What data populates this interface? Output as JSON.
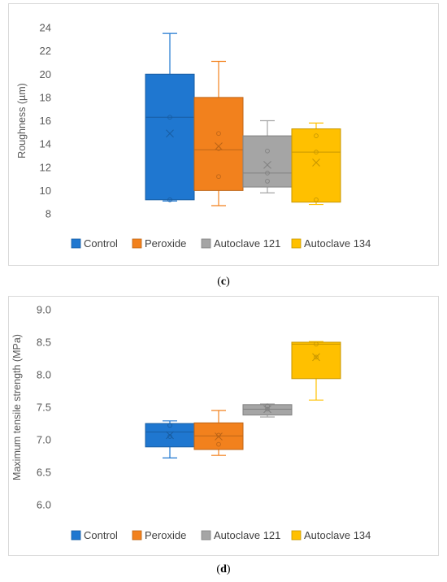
{
  "legend_colors": {
    "Control": "#1f77d0",
    "Peroxide": "#f2811d",
    "Autoclave 121": "#a5a5a5",
    "Autoclave 134": "#ffc000"
  },
  "chart_data": [
    {
      "type": "box",
      "panel_label": "c",
      "ylabel": "Roughness (µm)",
      "ylim": [
        8,
        24
      ],
      "yticks": [
        8,
        10,
        12,
        14,
        16,
        18,
        20,
        22,
        24
      ],
      "grid": false,
      "legend_position": "bottom",
      "series": [
        {
          "name": "Control",
          "color": "#1f77d0",
          "min": 9.1,
          "q1": 9.2,
          "median": 16.3,
          "q3": 20.0,
          "max": 23.5,
          "mean": 14.9,
          "points": [
            16.3,
            9.2
          ]
        },
        {
          "name": "Peroxide",
          "color": "#f2811d",
          "min": 8.7,
          "q1": 10.0,
          "median": 13.5,
          "q3": 18.0,
          "max": 21.1,
          "mean": 13.8,
          "points": [
            14.9,
            13.6,
            11.2
          ]
        },
        {
          "name": "Autoclave 121",
          "color": "#a5a5a5",
          "min": 9.8,
          "q1": 10.3,
          "median": 11.5,
          "q3": 14.7,
          "max": 16.0,
          "mean": 12.2,
          "points": [
            13.4,
            11.5,
            10.8
          ]
        },
        {
          "name": "Autoclave 134",
          "color": "#ffc000",
          "min": 8.8,
          "q1": 9.0,
          "median": 13.3,
          "q3": 15.3,
          "max": 15.8,
          "mean": 12.4,
          "points": [
            14.7,
            13.3,
            9.2
          ]
        }
      ]
    },
    {
      "type": "box",
      "panel_label": "d",
      "ylabel": "Maximum tensile strength (MPa)",
      "ylim": [
        6.0,
        9.0
      ],
      "yticks": [
        "6.0",
        "6.5",
        "7.0",
        "7.5",
        "8.0",
        "8.5",
        "9.0"
      ],
      "grid": false,
      "legend_position": "bottom",
      "series": [
        {
          "name": "Control",
          "color": "#1f77d0",
          "min": 6.72,
          "q1": 6.89,
          "median": 7.12,
          "q3": 7.25,
          "max": 7.29,
          "mean": 7.07,
          "points": [
            7.22,
            7.05
          ]
        },
        {
          "name": "Peroxide",
          "color": "#f2811d",
          "min": 6.76,
          "q1": 6.85,
          "median": 7.06,
          "q3": 7.26,
          "max": 7.45,
          "mean": 7.05,
          "points": [
            7.07,
            6.93
          ]
        },
        {
          "name": "Autoclave 121",
          "color": "#a5a5a5",
          "min": 7.35,
          "q1": 7.38,
          "median": 7.47,
          "q3": 7.54,
          "max": 7.55,
          "mean": 7.47,
          "points": [
            7.52,
            7.47
          ]
        },
        {
          "name": "Autoclave 134",
          "color": "#ffc000",
          "min": 7.61,
          "q1": 7.94,
          "median": 8.47,
          "q3": 8.5,
          "max": 8.51,
          "mean": 8.27,
          "points": [
            8.47,
            8.27
          ]
        }
      ]
    }
  ]
}
